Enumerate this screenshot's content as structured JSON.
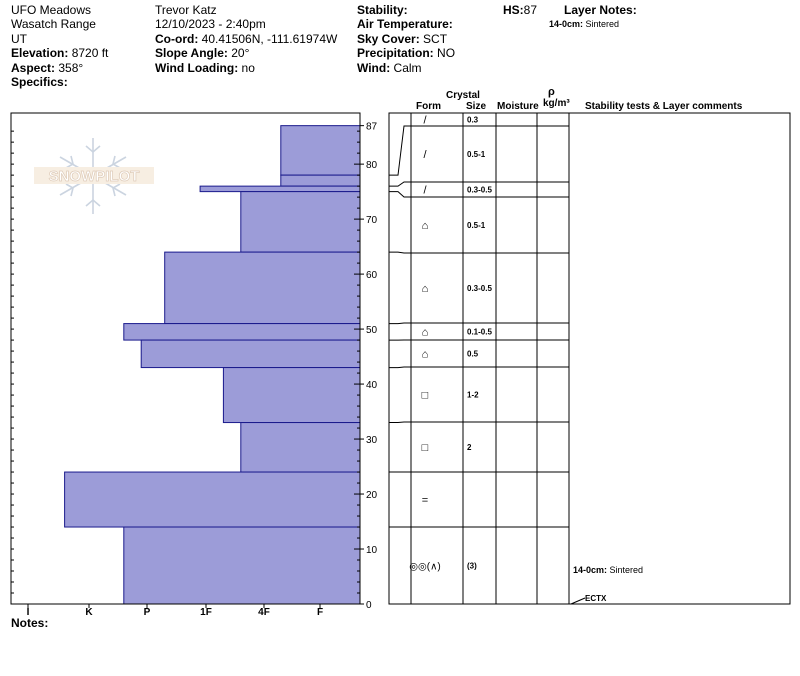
{
  "header": {
    "location": "UFO Meadows",
    "range": "Wasatch Range",
    "state": "UT",
    "elevation_label": "Elevation:",
    "elevation": " 8720 ft",
    "aspect_label": "Aspect:",
    "aspect": " 358°",
    "specifics_label": "Specifics:",
    "observer": "Trevor Katz",
    "datetime": "12/10/2023 - 2:40pm",
    "coord_label": "Co-ord:",
    "coord": " 40.41506N, -111.61974W",
    "slope_label": "Slope Angle:",
    "slope": " 20°",
    "wind_loading_label": "Wind Loading:",
    "wind_loading": " no",
    "stability_label": "Stability:",
    "air_temp_label": "Air Temperature:",
    "sky_label": "Sky Cover:",
    "sky": " SCT",
    "precip_label": "Precipitation:",
    "precip": " NO",
    "wind_label": "Wind:",
    "wind": "  Calm",
    "hs_label": "HS:",
    "hs": "87",
    "layer_notes_label": "Layer Notes:",
    "layer_note_depth": "14-0cm:",
    "layer_note_text": " Sintered"
  },
  "notes_label": "Notes:",
  "watermark": "SNOWPILOT",
  "columns": {
    "crystal": "Crystal",
    "form": "Form",
    "size": "Size",
    "moisture": "Moisture",
    "rho": "ρ",
    "density_unit": "kg/m³",
    "stability": "Stability tests & Layer comments"
  },
  "comment_depth": "14-0cm:",
  "comment_text": " Sintered",
  "test_label": "ECTX",
  "chart_data": {
    "type": "snow-profile",
    "hs": 87,
    "depth_ticks": [
      "0",
      "10",
      "20",
      "30",
      "40",
      "50",
      "60",
      "70",
      "80",
      "87"
    ],
    "hardness_ticks": [
      "I",
      "K",
      "P",
      "1F",
      "4F",
      "F"
    ],
    "layers": [
      {
        "top": 87,
        "bottom": 78,
        "hardness": 0.7,
        "form": "/",
        "size": "0.3"
      },
      {
        "top": 78,
        "bottom": 76,
        "hardness": 0.7,
        "form": "/",
        "size": "0.5-1"
      },
      {
        "top": 76,
        "bottom": 75,
        "hardness": 2.1,
        "form": "/",
        "size": "0.3-0.5"
      },
      {
        "top": 75,
        "bottom": 64,
        "hardness": 1.4,
        "form": "⌂",
        "size": "0.5-1"
      },
      {
        "top": 64,
        "bottom": 51,
        "hardness": 2.7,
        "form": "⌂",
        "size": "0.3-0.5"
      },
      {
        "top": 51,
        "bottom": 48,
        "hardness": 3.4,
        "form": "⌂",
        "size": "0.1-0.5"
      },
      {
        "top": 48,
        "bottom": 43,
        "hardness": 3.1,
        "form": "⌂",
        "size": "0.5"
      },
      {
        "top": 43,
        "bottom": 33,
        "hardness": 1.7,
        "form": "□",
        "size": "1-2"
      },
      {
        "top": 33,
        "bottom": 24,
        "hardness": 1.4,
        "form": "□",
        "size": "2"
      },
      {
        "top": 24,
        "bottom": 14,
        "hardness": 4.4,
        "form": "=",
        "size": ""
      },
      {
        "top": 14,
        "bottom": 0,
        "hardness": 3.4,
        "form": "◎◎(∧)",
        "size": "(3)"
      }
    ],
    "colors": {
      "fill": "#9c9cd8",
      "stroke": "#1a1a8c",
      "grid": "#000000"
    }
  }
}
